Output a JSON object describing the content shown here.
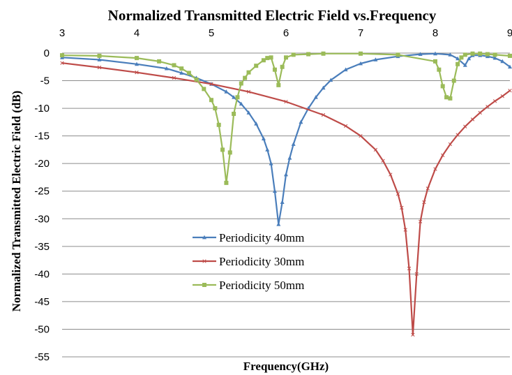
{
  "chart_data": {
    "type": "line",
    "title": "Normalized Transmitted Electric Field vs.Frequency",
    "xlabel": "Frequency(GHz)",
    "ylabel": "Normalized Transmitted Electric Field (dB)",
    "xlim": [
      3,
      9
    ],
    "ylim": [
      -55,
      0
    ],
    "x_ticks": [
      "3",
      "4",
      "5",
      "6",
      "7",
      "8",
      "9"
    ],
    "y_ticks": [
      "0",
      "-5",
      "-10",
      "-15",
      "-20",
      "-25",
      "-30",
      "-35",
      "-40",
      "-45",
      "-50",
      "-55"
    ],
    "x_axis_position": "top",
    "grid": "horizontal",
    "legend_position": "center",
    "series": [
      {
        "name": "Periodicity 40mm",
        "color": "#4a7ebb",
        "marker": "triangle",
        "x": [
          3.0,
          3.5,
          4.0,
          4.4,
          4.6,
          4.8,
          5.0,
          5.2,
          5.3,
          5.4,
          5.5,
          5.6,
          5.7,
          5.75,
          5.8,
          5.85,
          5.9,
          5.95,
          6.0,
          6.05,
          6.1,
          6.2,
          6.3,
          6.4,
          6.5,
          6.6,
          6.8,
          7.0,
          7.2,
          7.5,
          7.8,
          8.0,
          8.2,
          8.3,
          8.4,
          8.45,
          8.5,
          8.6,
          8.7,
          8.8,
          8.9,
          9.0
        ],
        "y": [
          -0.8,
          -1.2,
          -2.0,
          -2.8,
          -3.6,
          -4.5,
          -5.6,
          -7.0,
          -8.0,
          -9.2,
          -10.8,
          -12.8,
          -15.5,
          -17.5,
          -20.0,
          -25.0,
          -31.0,
          -27.0,
          -22.0,
          -19.0,
          -16.5,
          -12.5,
          -10.0,
          -8.0,
          -6.3,
          -4.9,
          -3.0,
          -1.9,
          -1.2,
          -0.6,
          -0.2,
          -0.1,
          -0.3,
          -1.0,
          -2.2,
          -1.0,
          -0.4,
          -0.4,
          -0.6,
          -0.9,
          -1.5,
          -2.5
        ]
      },
      {
        "name": "Periodicity 30mm",
        "color": "#be4b48",
        "marker": "cross",
        "x": [
          3.0,
          3.5,
          4.0,
          4.5,
          5.0,
          5.5,
          6.0,
          6.5,
          6.8,
          7.0,
          7.2,
          7.3,
          7.4,
          7.5,
          7.55,
          7.6,
          7.65,
          7.7,
          7.75,
          7.8,
          7.85,
          7.9,
          8.0,
          8.1,
          8.2,
          8.3,
          8.4,
          8.5,
          8.6,
          8.7,
          8.8,
          8.9,
          9.0
        ],
        "y": [
          -1.8,
          -2.6,
          -3.5,
          -4.5,
          -5.6,
          -7.0,
          -8.8,
          -11.2,
          -13.2,
          -15.0,
          -17.5,
          -19.5,
          -22.0,
          -25.5,
          -28.0,
          -32.0,
          -39.0,
          -51.0,
          -40.0,
          -30.5,
          -27.0,
          -24.5,
          -21.0,
          -18.5,
          -16.5,
          -14.8,
          -13.3,
          -12.0,
          -10.8,
          -9.7,
          -8.7,
          -7.8,
          -6.8
        ]
      },
      {
        "name": "Periodicity 50mm",
        "color": "#9bbb59",
        "marker": "square",
        "x": [
          3.0,
          3.5,
          4.0,
          4.3,
          4.5,
          4.6,
          4.7,
          4.8,
          4.9,
          5.0,
          5.05,
          5.1,
          5.15,
          5.2,
          5.25,
          5.3,
          5.35,
          5.4,
          5.45,
          5.5,
          5.6,
          5.7,
          5.75,
          5.8,
          5.85,
          5.9,
          5.95,
          6.0,
          6.1,
          6.3,
          6.5,
          7.0,
          7.5,
          8.0,
          8.05,
          8.1,
          8.15,
          8.2,
          8.25,
          8.3,
          8.35,
          8.4,
          8.5,
          8.6,
          8.7,
          8.8,
          9.0
        ],
        "y": [
          -0.4,
          -0.5,
          -0.9,
          -1.5,
          -2.2,
          -2.8,
          -3.6,
          -4.8,
          -6.5,
          -8.5,
          -10.0,
          -13.0,
          -17.5,
          -23.5,
          -18.0,
          -11.0,
          -8.0,
          -5.5,
          -4.5,
          -3.5,
          -2.3,
          -1.3,
          -0.9,
          -0.8,
          -3.0,
          -5.8,
          -2.5,
          -0.8,
          -0.3,
          -0.2,
          -0.1,
          -0.1,
          -0.3,
          -1.5,
          -3.0,
          -6.0,
          -8.0,
          -8.2,
          -5.0,
          -2.0,
          -0.8,
          -0.3,
          -0.1,
          -0.1,
          -0.2,
          -0.3,
          -0.5
        ]
      }
    ]
  }
}
